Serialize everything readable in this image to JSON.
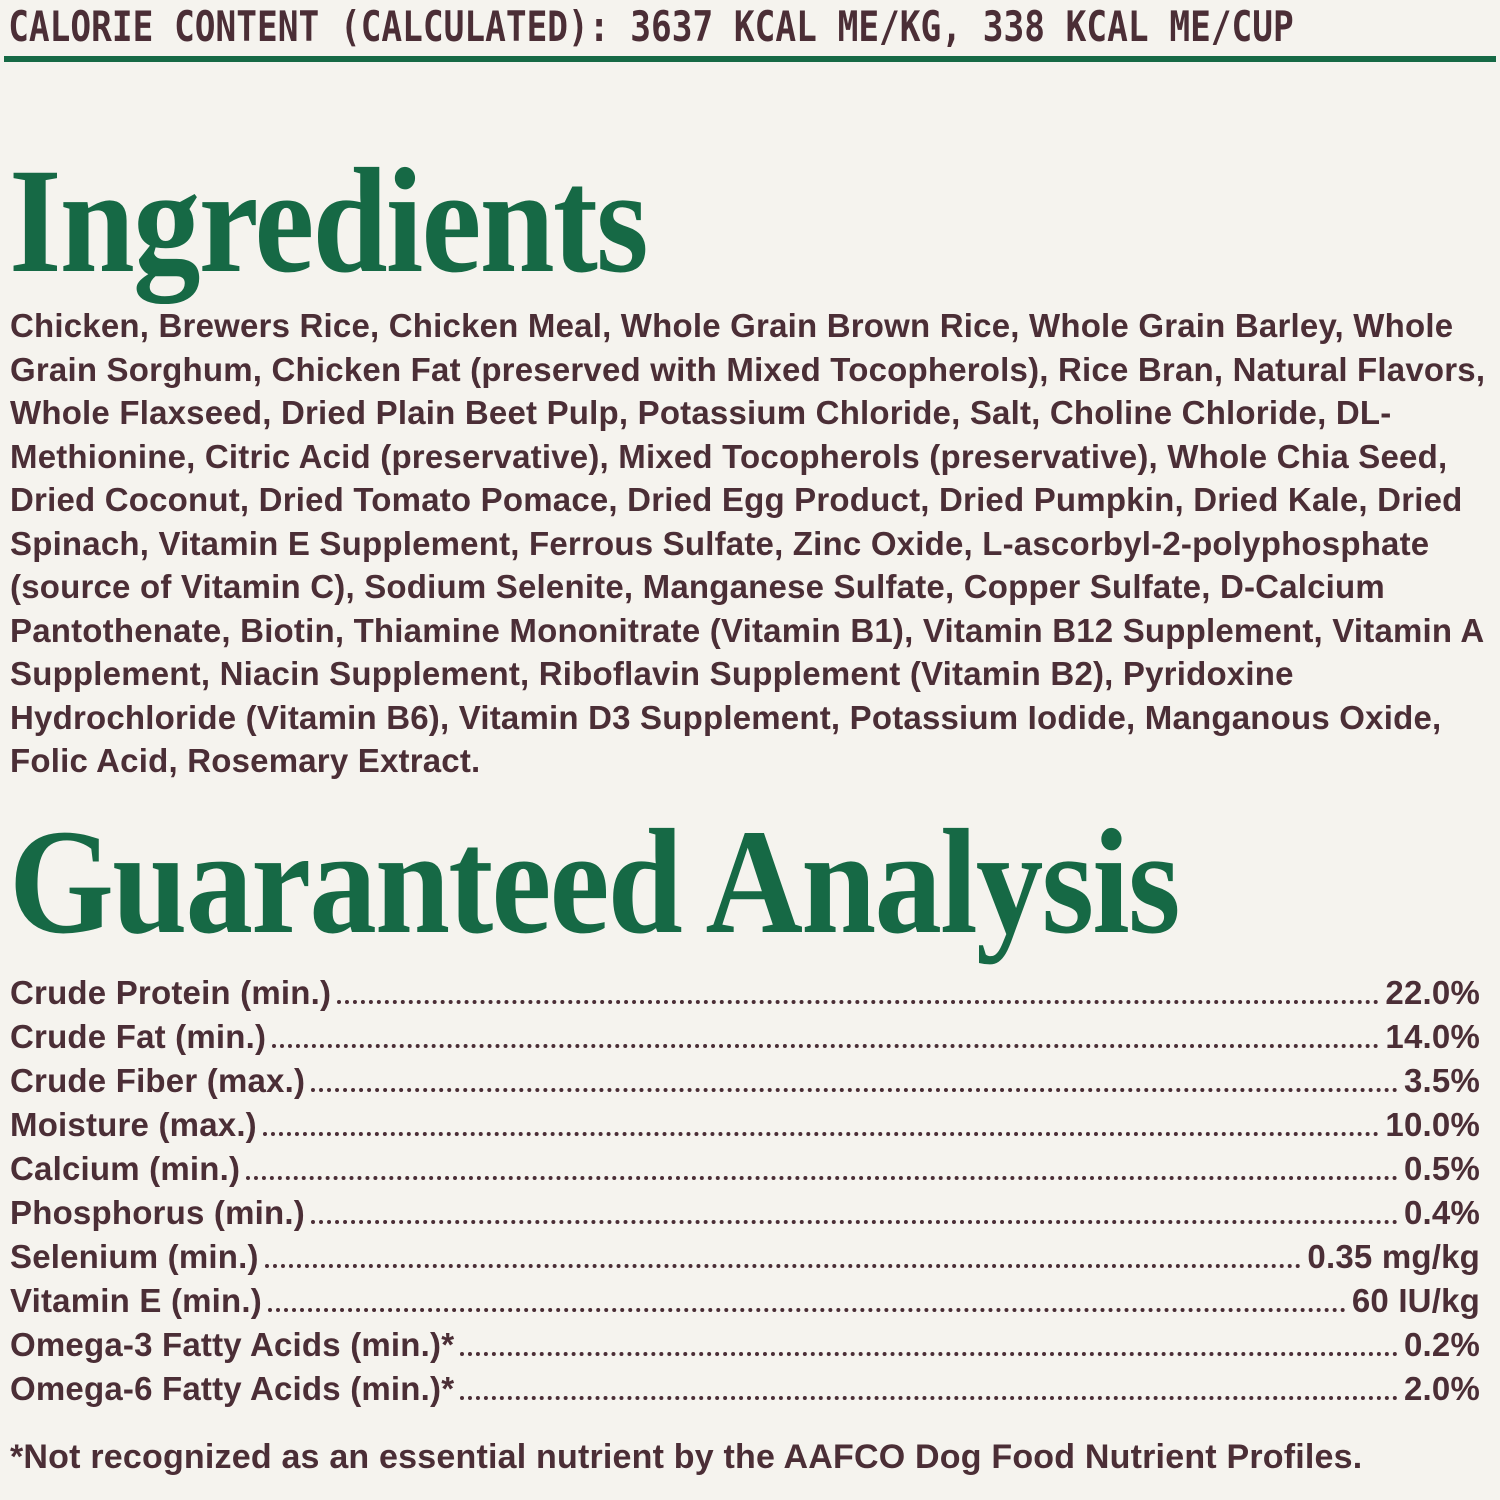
{
  "colors": {
    "green": "#166945",
    "brown": "#4b2e36",
    "background": "#f5f3ee"
  },
  "header": {
    "calorie_line": "CALORIE CONTENT (CALCULATED): 3637 KCAL ME/KG, 338 KCAL ME/CUP"
  },
  "ingredients": {
    "title": "Ingredients",
    "text": "Chicken, Brewers Rice, Chicken Meal, Whole Grain Brown Rice, Whole Grain Barley, Whole Grain Sorghum, Chicken Fat (preserved with Mixed Tocopherols), Rice Bran, Natural Flavors, Whole Flaxseed, Dried Plain Beet Pulp, Potassium Chloride, Salt, Choline Chloride, DL-Methionine, Citric Acid (preservative), Mixed Tocopherols (preservative), Whole Chia Seed, Dried Coconut, Dried Tomato Pomace, Dried Egg Product, Dried Pumpkin, Dried Kale, Dried Spinach, Vitamin E Supplement, Ferrous Sulfate, Zinc Oxide, L-ascorbyl-2-polyphosphate (source of Vitamin C), Sodium Selenite, Manganese Sulfate, Copper Sulfate, D-Calcium Pantothenate, Biotin, Thiamine Mononitrate (Vitamin B1), Vitamin B12 Supplement, Vitamin A Supplement, Niacin Supplement, Riboflavin Supplement (Vitamin B2), Pyridoxine Hydrochloride (Vitamin B6), Vitamin D3 Supplement, Potassium Iodide, Manganous Oxide, Folic Acid, Rosemary Extract."
  },
  "analysis": {
    "title": "Guaranteed Analysis",
    "rows": [
      {
        "label": "Crude Protein (min.)",
        "value": "22.0%"
      },
      {
        "label": "Crude Fat (min.)",
        "value": "14.0%"
      },
      {
        "label": "Crude Fiber (max.)",
        "value": "3.5%"
      },
      {
        "label": "Moisture (max.)",
        "value": "10.0%"
      },
      {
        "label": "Calcium (min.)",
        "value": "0.5%"
      },
      {
        "label": "Phosphorus (min.)",
        "value": "0.4%"
      },
      {
        "label": "Selenium (min.)",
        "value": "0.35 mg/kg"
      },
      {
        "label": "Vitamin E (min.)",
        "value": "60 IU/kg"
      },
      {
        "label": "Omega-3 Fatty Acids (min.)*",
        "value": "0.2%"
      },
      {
        "label": "Omega-6 Fatty Acids (min.)*",
        "value": "2.0%"
      }
    ],
    "footnote": "*Not recognized as an essential nutrient by the AAFCO Dog Food Nutrient Profiles."
  }
}
